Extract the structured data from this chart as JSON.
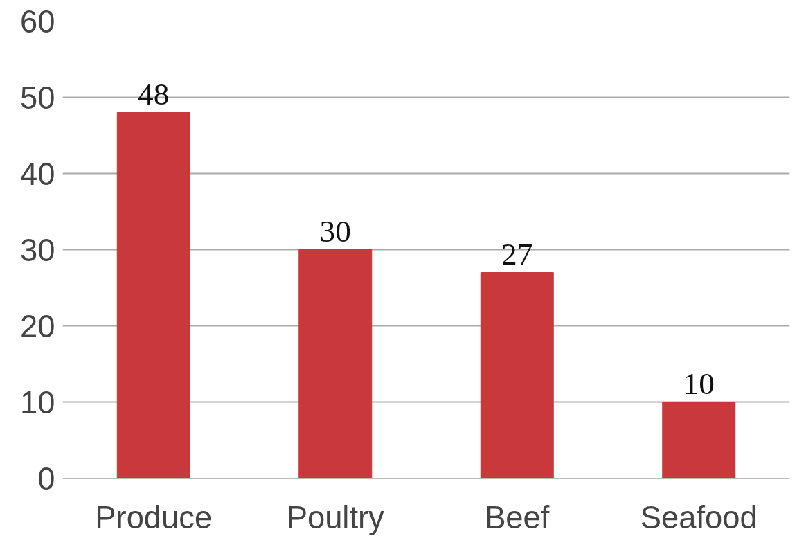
{
  "chart_data": {
    "type": "bar",
    "categories": [
      "Produce",
      "Poultry",
      "Beef",
      "Seafood"
    ],
    "values": [
      48,
      30,
      27,
      10
    ],
    "color": "#c9383a",
    "ylim": [
      0,
      60
    ],
    "yticks": [
      0,
      10,
      20,
      30,
      40,
      50,
      60
    ],
    "grid": "y",
    "data_labels": true
  }
}
